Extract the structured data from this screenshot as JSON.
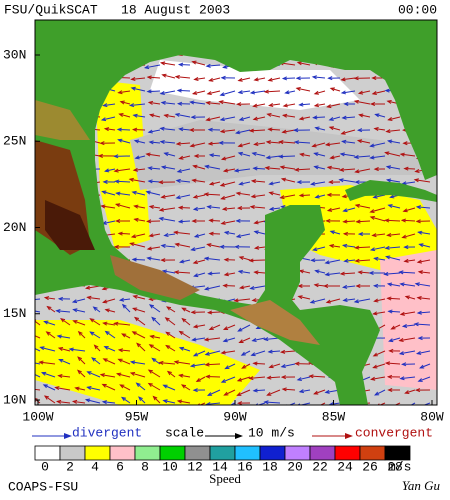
{
  "header": {
    "title": "FSU/QuikSCAT   18 August 2003",
    "time": "00:00"
  },
  "map": {
    "lat_ticks": [
      {
        "value": 30,
        "label": "30N"
      },
      {
        "value": 25,
        "label": "25N"
      },
      {
        "value": 20,
        "label": "20N"
      },
      {
        "value": 15,
        "label": "15N"
      },
      {
        "value": 10,
        "label": "10N"
      }
    ],
    "lon_ticks": [
      {
        "value": -100,
        "label": "100W"
      },
      {
        "value": -95,
        "label": "95W"
      },
      {
        "value": -90,
        "label": "90W"
      },
      {
        "value": -85,
        "label": "85W"
      },
      {
        "value": -80,
        "label": "80W"
      }
    ]
  },
  "legend": {
    "divergent": "divergent",
    "scale": "scale",
    "scale_value": "10 m/s",
    "convergent": "convergent",
    "speed_ticks": [
      0,
      2,
      4,
      6,
      8,
      10,
      12,
      14,
      16,
      18,
      20,
      22,
      24,
      26,
      28
    ],
    "colors": [
      "#ffffff",
      "#c8c8c8",
      "#ffff00",
      "#ffc0c8",
      "#90ee90",
      "#00d000",
      "#909090",
      "#20a0a0",
      "#20c0ff",
      "#1020d0",
      "#c080ff",
      "#a040c0",
      "#ff0000",
      "#d04010",
      "#000000"
    ],
    "speed_unit": "m/s",
    "speed_label": "Speed"
  },
  "footer": {
    "left": "COAPS-FSU",
    "right": "Yan Gu"
  }
}
